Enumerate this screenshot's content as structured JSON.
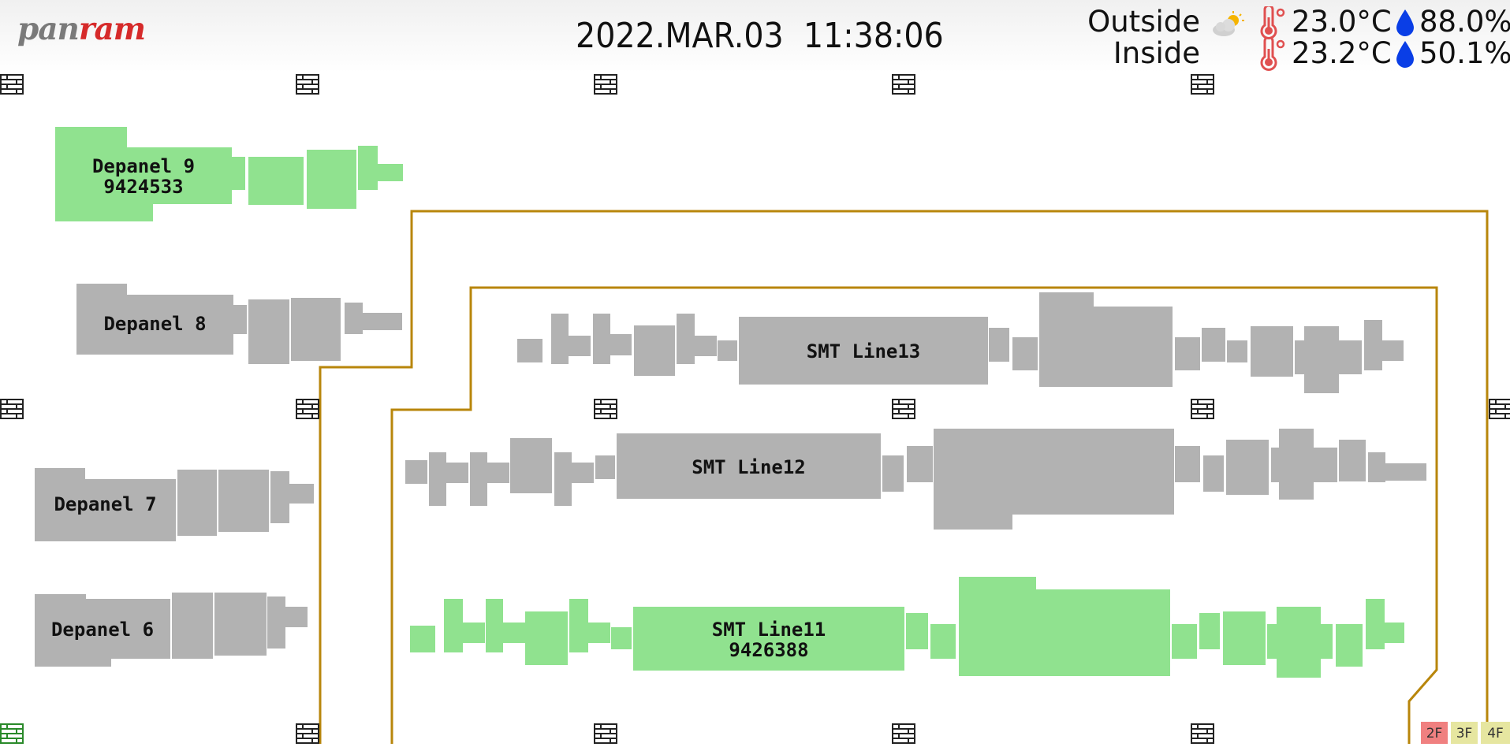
{
  "header": {
    "logo": {
      "part1": "pan",
      "part2": "ram"
    },
    "date": "2022.MAR.03",
    "time": "11:38:06"
  },
  "weather": {
    "outside": {
      "label": "Outside",
      "icon": "partly-cloudy-icon",
      "temperature": "23.0°C",
      "humidity": "88.0%"
    },
    "inside": {
      "label": "Inside",
      "temperature": "23.2°C",
      "humidity": "50.1%"
    }
  },
  "machines": {
    "depanel9": {
      "name": "Depanel 9",
      "code": "9424533",
      "status": "active"
    },
    "depanel8": {
      "name": "Depanel 8",
      "code": "",
      "status": "idle"
    },
    "depanel7": {
      "name": "Depanel 7",
      "code": "",
      "status": "idle"
    },
    "depanel6": {
      "name": "Depanel 6",
      "code": "",
      "status": "idle"
    },
    "smt13": {
      "name": "SMT Line13",
      "code": "",
      "status": "idle"
    },
    "smt12": {
      "name": "SMT Line12",
      "code": "",
      "status": "idle"
    },
    "smt11": {
      "name": "SMT Line11",
      "code": "9426388",
      "status": "active"
    }
  },
  "floors": [
    {
      "label": "2F",
      "color": "#f08080"
    },
    {
      "label": "3F",
      "color": "#e6e6a0"
    },
    {
      "label": "4F",
      "color": "#e6e6a0"
    }
  ],
  "colors": {
    "active": "#90e28f",
    "idle": "#b2b2b2",
    "wall": "#b8860b",
    "temp_icon": "#e05050",
    "humidity_icon": "#0a3ee6"
  }
}
